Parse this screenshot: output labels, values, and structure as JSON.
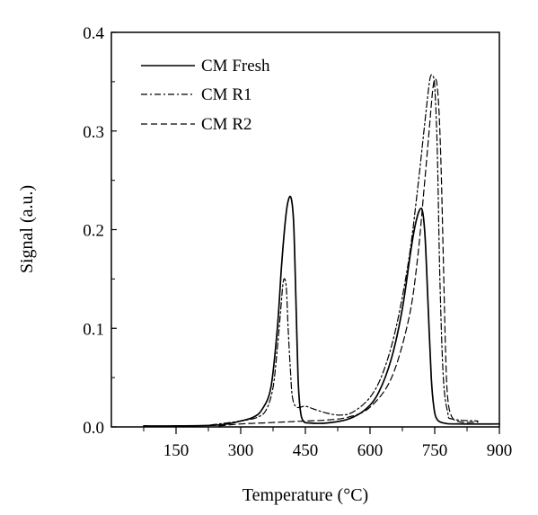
{
  "chart_data": {
    "type": "line",
    "title": "",
    "xlabel": "Temperature (°C)",
    "ylabel": "Signal (a.u.)",
    "xlim": [
      0,
      900
    ],
    "ylim": [
      0,
      0.4
    ],
    "x_ticks": [
      150,
      300,
      450,
      600,
      750,
      900
    ],
    "x_tick_labels": [
      "150",
      "300",
      "450",
      "600",
      "750",
      "900"
    ],
    "y_ticks": [
      0.0,
      0.1,
      0.2,
      0.3,
      0.4
    ],
    "y_tick_labels": [
      "0.0",
      "0.1",
      "0.2",
      "0.3",
      "0.4"
    ],
    "legend_position": "top-left",
    "grid": false,
    "series": [
      {
        "name": "CM Fresh",
        "style": "solid",
        "x": [
          75,
          150,
          250,
          300,
          330,
          350,
          370,
          385,
          395,
          405,
          412,
          418,
          423,
          428,
          433,
          438,
          445,
          460,
          500,
          550,
          590,
          620,
          650,
          675,
          695,
          705,
          715,
          722,
          728,
          735,
          742,
          748,
          755,
          770,
          800,
          900
        ],
        "y": [
          0.001,
          0.001,
          0.002,
          0.006,
          0.01,
          0.018,
          0.04,
          0.1,
          0.165,
          0.215,
          0.232,
          0.23,
          0.205,
          0.13,
          0.05,
          0.018,
          0.006,
          0.004,
          0.004,
          0.008,
          0.018,
          0.035,
          0.07,
          0.12,
          0.18,
          0.205,
          0.22,
          0.218,
          0.19,
          0.12,
          0.05,
          0.02,
          0.008,
          0.004,
          0.003,
          0.003
        ]
      },
      {
        "name": "CM R1",
        "style": "dashdot",
        "x": [
          230,
          300,
          340,
          360,
          375,
          385,
          393,
          398,
          402,
          406,
          410,
          415,
          420,
          430,
          450,
          470,
          500,
          530,
          560,
          600,
          630,
          660,
          690,
          710,
          725,
          735,
          740,
          745,
          750,
          756,
          762,
          770,
          780,
          790,
          850
        ],
        "y": [
          0.002,
          0.006,
          0.01,
          0.018,
          0.04,
          0.08,
          0.12,
          0.145,
          0.15,
          0.14,
          0.1,
          0.06,
          0.03,
          0.02,
          0.021,
          0.018,
          0.014,
          0.012,
          0.015,
          0.03,
          0.055,
          0.1,
          0.17,
          0.24,
          0.3,
          0.34,
          0.355,
          0.356,
          0.345,
          0.28,
          0.15,
          0.05,
          0.015,
          0.008,
          0.006
        ]
      },
      {
        "name": "CM R2",
        "style": "dashed",
        "x": [
          250,
          300,
          350,
          400,
          450,
          500,
          550,
          600,
          650,
          690,
          710,
          725,
          737,
          745,
          750,
          755,
          760,
          765,
          770,
          775,
          780,
          790,
          810,
          850
        ],
        "y": [
          0.001,
          0.003,
          0.004,
          0.005,
          0.006,
          0.007,
          0.01,
          0.02,
          0.05,
          0.11,
          0.17,
          0.24,
          0.3,
          0.34,
          0.352,
          0.348,
          0.32,
          0.26,
          0.17,
          0.08,
          0.03,
          0.01,
          0.005,
          0.005
        ]
      }
    ]
  }
}
